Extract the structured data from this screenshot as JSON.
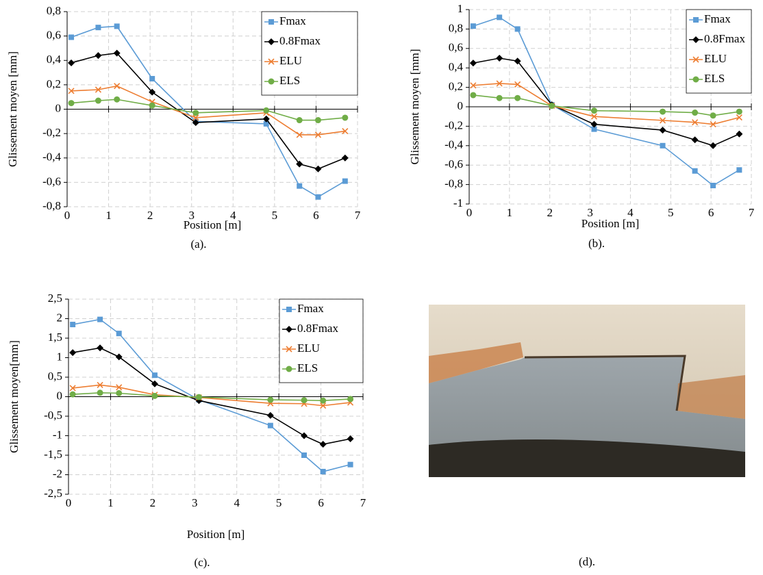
{
  "chart_data": [
    {
      "type": "line",
      "caption": "(a).",
      "xlabel": "Position [m]",
      "ylabel": "Glissement moyen [mm]",
      "x": [
        0.1,
        0.75,
        1.2,
        2.05,
        3.1,
        4.8,
        5.6,
        6.05,
        6.7
      ],
      "series": [
        {
          "name": "Fmax",
          "color": "#5b9bd5",
          "marker": "square",
          "values": [
            0.59,
            0.67,
            0.68,
            0.25,
            -0.1,
            -0.12,
            -0.63,
            -0.72,
            -0.59
          ]
        },
        {
          "name": "0.8Fmax",
          "color": "#000000",
          "marker": "diamond",
          "values": [
            0.38,
            0.44,
            0.46,
            0.14,
            -0.11,
            -0.08,
            -0.45,
            -0.49,
            -0.4
          ]
        },
        {
          "name": "ELU",
          "color": "#ed7d31",
          "marker": "x",
          "values": [
            0.15,
            0.16,
            0.19,
            0.06,
            -0.07,
            -0.03,
            -0.21,
            -0.21,
            -0.18
          ]
        },
        {
          "name": "ELS",
          "color": "#70ad47",
          "marker": "circle",
          "values": [
            0.05,
            0.07,
            0.08,
            0.03,
            -0.03,
            -0.01,
            -0.09,
            -0.09,
            -0.07
          ]
        }
      ],
      "xlim": [
        0,
        7
      ],
      "xticks": [
        0,
        1,
        2,
        3,
        4,
        5,
        6,
        7
      ],
      "ylim": [
        -0.8,
        0.8
      ],
      "yticks": [
        {
          "value": -0.8,
          "label": "-0,8"
        },
        {
          "value": -0.6,
          "label": "-0,6"
        },
        {
          "value": -0.4,
          "label": "-0,4"
        },
        {
          "value": -0.2,
          "label": "-0,2"
        },
        0,
        {
          "value": 0.2,
          "label": "0,2"
        },
        {
          "value": 0.4,
          "label": "0,4"
        },
        {
          "value": 0.6,
          "label": "0,6"
        },
        {
          "value": 0.8,
          "label": "0,8"
        }
      ],
      "grid": true,
      "legend": "upper right"
    },
    {
      "type": "line",
      "caption": "(b).",
      "xlabel": "Position [m]",
      "ylabel": "Glissement moyen [mm]",
      "x": [
        0.1,
        0.75,
        1.2,
        2.05,
        3.1,
        4.8,
        5.6,
        6.05,
        6.7
      ],
      "series": [
        {
          "name": "Fmax",
          "color": "#5b9bd5",
          "marker": "square",
          "values": [
            0.83,
            0.92,
            0.8,
            0.02,
            -0.23,
            -0.4,
            -0.66,
            -0.81,
            -0.65
          ]
        },
        {
          "name": "0.8Fmax",
          "color": "#000000",
          "marker": "diamond",
          "values": [
            0.45,
            0.5,
            0.47,
            0.02,
            -0.18,
            -0.24,
            -0.34,
            -0.4,
            -0.28
          ]
        },
        {
          "name": "ELU",
          "color": "#ed7d31",
          "marker": "x",
          "values": [
            0.22,
            0.24,
            0.23,
            0.01,
            -0.1,
            -0.14,
            -0.16,
            -0.18,
            -0.11
          ]
        },
        {
          "name": "ELS",
          "color": "#70ad47",
          "marker": "circle",
          "values": [
            0.12,
            0.09,
            0.09,
            0.01,
            -0.04,
            -0.05,
            -0.06,
            -0.09,
            -0.05
          ]
        }
      ],
      "xlim": [
        0,
        7
      ],
      "xticks": [
        0,
        1,
        2,
        3,
        4,
        5,
        6,
        7
      ],
      "ylim": [
        -1,
        1
      ],
      "yticks": [
        -1,
        {
          "value": -0.8,
          "label": "-0,8"
        },
        {
          "value": -0.6,
          "label": "-0,6"
        },
        {
          "value": -0.4,
          "label": "-0,4"
        },
        {
          "value": -0.2,
          "label": "-0,2"
        },
        0,
        {
          "value": 0.2,
          "label": "0,2"
        },
        {
          "value": 0.4,
          "label": "0,4"
        },
        {
          "value": 0.6,
          "label": "0,6"
        },
        {
          "value": 0.8,
          "label": "0,8"
        },
        1
      ],
      "grid": true,
      "legend": "upper right"
    },
    {
      "type": "line",
      "caption": "(c).",
      "xlabel": "Position [m]",
      "ylabel": "Glissement moyen[mm]",
      "x": [
        0.1,
        0.75,
        1.2,
        2.05,
        3.1,
        4.8,
        5.6,
        6.05,
        6.7
      ],
      "series": [
        {
          "name": "Fmax",
          "color": "#5b9bd5",
          "marker": "square",
          "values": [
            1.85,
            1.98,
            1.62,
            0.55,
            -0.08,
            -0.74,
            -1.5,
            -1.92,
            -1.74
          ]
        },
        {
          "name": "0.8Fmax",
          "color": "#000000",
          "marker": "diamond",
          "values": [
            1.13,
            1.25,
            1.02,
            0.33,
            -0.1,
            -0.48,
            -1.0,
            -1.22,
            -1.08
          ]
        },
        {
          "name": "ELU",
          "color": "#ed7d31",
          "marker": "x",
          "values": [
            0.22,
            0.3,
            0.24,
            0.05,
            -0.02,
            -0.17,
            -0.18,
            -0.23,
            -0.15
          ]
        },
        {
          "name": "ELS",
          "color": "#70ad47",
          "marker": "circle",
          "values": [
            0.06,
            0.1,
            0.09,
            0.02,
            -0.01,
            -0.08,
            -0.09,
            -0.1,
            -0.06
          ]
        }
      ],
      "xlim": [
        0,
        7
      ],
      "xticks": [
        0,
        1,
        2,
        3,
        4,
        5,
        6,
        7
      ],
      "ylim": [
        -2.5,
        2.5
      ],
      "yticks": [
        {
          "value": -2.5,
          "label": "-2,5"
        },
        -2,
        {
          "value": -1.5,
          "label": "-1,5"
        },
        -1,
        {
          "value": -0.5,
          "label": "-0,5"
        },
        0,
        {
          "value": 0.5,
          "label": "0,5"
        },
        1,
        {
          "value": 1.5,
          "label": "1,5"
        },
        2,
        {
          "value": 2.5,
          "label": "2,5"
        }
      ],
      "grid": true,
      "legend": "upper right"
    }
  ],
  "photo": {
    "caption": "(d)."
  }
}
